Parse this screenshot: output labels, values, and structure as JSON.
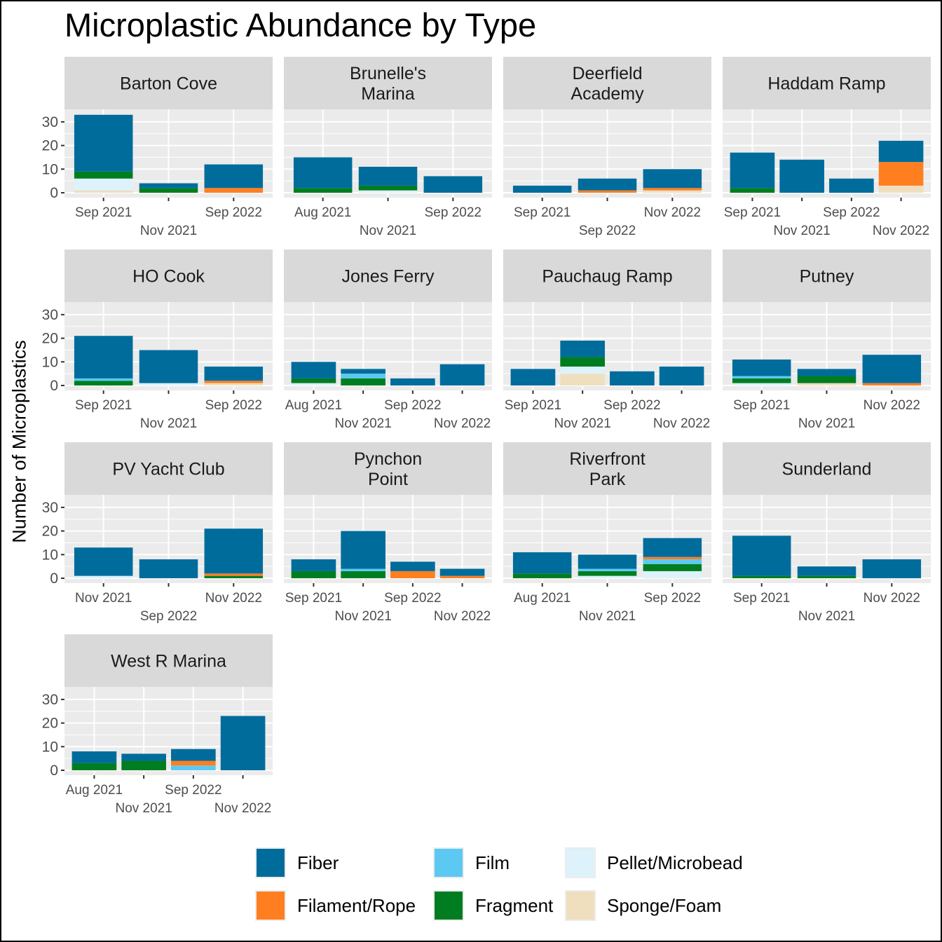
{
  "chart_data": {
    "type": "bar",
    "subtype": "stacked-faceted",
    "title": "Microplastic Abundance by Type",
    "xlabel": "",
    "ylabel": "Number of Microplastics",
    "ylim": [
      0,
      33
    ],
    "yticks": [
      0,
      10,
      20,
      30
    ],
    "grid": true,
    "legend_position": "bottom",
    "types": [
      "Sponge/Foam",
      "Pellet/Microbead",
      "Fragment",
      "Film",
      "Filament/Rope",
      "Fiber"
    ],
    "legend": [
      {
        "name": "Fiber",
        "color": "#006C9C"
      },
      {
        "name": "Film",
        "color": "#5BC9F2"
      },
      {
        "name": "Pellet/Microbead",
        "color": "#DDF2FA"
      },
      {
        "name": "Filament/Rope",
        "color": "#FF7F20"
      },
      {
        "name": "Fragment",
        "color": "#007D20"
      },
      {
        "name": "Sponge/Foam",
        "color": "#EFDFBE"
      }
    ],
    "colors": {
      "Fiber": "#006C9C",
      "Film": "#5BC9F2",
      "Pellet/Microbead": "#DDF2FA",
      "Filament/Rope": "#FF7F20",
      "Fragment": "#007D20",
      "Sponge/Foam": "#EFDFBE"
    },
    "facets": [
      {
        "label": [
          "Barton Cove"
        ],
        "categories": [
          "Sep 2021",
          "Nov 2021",
          "Sep 2022"
        ],
        "series": {
          "Sponge/Foam": [
            1,
            0,
            0
          ],
          "Pellet/Microbead": [
            5,
            0,
            0
          ],
          "Fragment": [
            3,
            2,
            0
          ],
          "Film": [
            0,
            0,
            0
          ],
          "Filament/Rope": [
            0,
            0,
            2
          ],
          "Fiber": [
            24,
            2,
            10
          ]
        }
      },
      {
        "label": [
          "Brunelle's",
          "Marina"
        ],
        "categories": [
          "Aug 2021",
          "Nov 2021",
          "Sep 2022"
        ],
        "series": {
          "Sponge/Foam": [
            0,
            0,
            0
          ],
          "Pellet/Microbead": [
            0,
            1,
            0
          ],
          "Fragment": [
            2,
            2,
            0
          ],
          "Film": [
            0,
            0,
            0
          ],
          "Filament/Rope": [
            0,
            0,
            0
          ],
          "Fiber": [
            13,
            8,
            7
          ]
        }
      },
      {
        "label": [
          "Deerfield",
          "Academy"
        ],
        "categories": [
          "Sep 2021",
          "Sep 2022",
          "Nov 2022"
        ],
        "series": {
          "Sponge/Foam": [
            0,
            0,
            1
          ],
          "Pellet/Microbead": [
            0,
            0,
            0
          ],
          "Fragment": [
            0,
            0,
            0
          ],
          "Film": [
            0,
            0,
            0
          ],
          "Filament/Rope": [
            0,
            1,
            1
          ],
          "Fiber": [
            3,
            5,
            8
          ]
        }
      },
      {
        "label": [
          "Haddam Ramp"
        ],
        "categories": [
          "Sep 2021",
          "Nov 2021",
          "Sep 2022",
          "Nov 2022"
        ],
        "series": {
          "Sponge/Foam": [
            0,
            0,
            0,
            3
          ],
          "Pellet/Microbead": [
            0,
            0,
            0,
            0
          ],
          "Fragment": [
            2,
            0,
            0,
            0
          ],
          "Film": [
            0,
            0,
            0,
            0
          ],
          "Filament/Rope": [
            0,
            0,
            0,
            10
          ],
          "Fiber": [
            15,
            14,
            6,
            9
          ]
        }
      },
      {
        "label": [
          "HO Cook"
        ],
        "categories": [
          "Sep 2021",
          "Nov 2021",
          "Sep 2022"
        ],
        "series": {
          "Sponge/Foam": [
            0,
            0,
            1
          ],
          "Pellet/Microbead": [
            0,
            1,
            0
          ],
          "Fragment": [
            2,
            0,
            0
          ],
          "Film": [
            1,
            0,
            0
          ],
          "Filament/Rope": [
            0,
            0,
            1
          ],
          "Fiber": [
            18,
            14,
            6
          ]
        }
      },
      {
        "label": [
          "Jones Ferry"
        ],
        "categories": [
          "Aug 2021",
          "Nov 2021",
          "Sep 2022",
          "Nov 2022"
        ],
        "series": {
          "Sponge/Foam": [
            0,
            0,
            0,
            0
          ],
          "Pellet/Microbead": [
            1,
            0,
            0,
            0
          ],
          "Fragment": [
            2,
            3,
            0,
            0
          ],
          "Film": [
            0,
            2,
            0,
            0
          ],
          "Filament/Rope": [
            0,
            0,
            0,
            0
          ],
          "Fiber": [
            7,
            2,
            3,
            9
          ]
        }
      },
      {
        "label": [
          "Pauchaug Ramp"
        ],
        "categories": [
          "Sep 2021",
          "Nov 2021",
          "Sep 2022",
          "Nov 2022"
        ],
        "series": {
          "Sponge/Foam": [
            0,
            5,
            0,
            0
          ],
          "Pellet/Microbead": [
            0,
            3,
            0,
            0
          ],
          "Fragment": [
            0,
            4,
            0,
            0
          ],
          "Film": [
            0,
            0,
            0,
            0
          ],
          "Filament/Rope": [
            0,
            0,
            0,
            0
          ],
          "Fiber": [
            7,
            7,
            6,
            8
          ]
        }
      },
      {
        "label": [
          "Putney"
        ],
        "categories": [
          "Sep 2021",
          "Nov 2021",
          "Nov 2022"
        ],
        "series": {
          "Sponge/Foam": [
            0,
            1,
            0
          ],
          "Pellet/Microbead": [
            1,
            0,
            0
          ],
          "Fragment": [
            2,
            3,
            0
          ],
          "Film": [
            1,
            0,
            0
          ],
          "Filament/Rope": [
            0,
            0,
            1
          ],
          "Fiber": [
            7,
            3,
            12
          ]
        }
      },
      {
        "label": [
          "PV Yacht Club"
        ],
        "categories": [
          "Nov 2021",
          "Sep 2022",
          "Nov 2022"
        ],
        "series": {
          "Sponge/Foam": [
            0,
            0,
            0
          ],
          "Pellet/Microbead": [
            1,
            0,
            0
          ],
          "Fragment": [
            0,
            0,
            1
          ],
          "Film": [
            0,
            0,
            0
          ],
          "Filament/Rope": [
            0,
            0,
            1
          ],
          "Fiber": [
            12,
            8,
            19
          ]
        }
      },
      {
        "label": [
          "Pynchon",
          "Point"
        ],
        "categories": [
          "Sep 2021",
          "Nov 2021",
          "Sep 2022",
          "Nov 2022"
        ],
        "series": {
          "Sponge/Foam": [
            0,
            0,
            0,
            0
          ],
          "Pellet/Microbead": [
            0,
            0,
            0,
            0
          ],
          "Fragment": [
            3,
            3,
            0,
            0
          ],
          "Film": [
            0,
            1,
            0,
            0
          ],
          "Filament/Rope": [
            0,
            0,
            3,
            1
          ],
          "Fiber": [
            5,
            16,
            4,
            3
          ]
        }
      },
      {
        "label": [
          "Riverfront",
          "Park"
        ],
        "categories": [
          "Aug 2021",
          "Nov 2021",
          "Sep 2022"
        ],
        "series": {
          "Sponge/Foam": [
            0,
            0,
            0
          ],
          "Pellet/Microbead": [
            0,
            1,
            3
          ],
          "Fragment": [
            2,
            2,
            3
          ],
          "Film": [
            0,
            1,
            2
          ],
          "Filament/Rope": [
            0,
            0,
            1
          ],
          "Fiber": [
            9,
            6,
            8
          ]
        }
      },
      {
        "label": [
          "Sunderland"
        ],
        "categories": [
          "Sep 2021",
          "Nov 2021",
          "Nov 2022"
        ],
        "series": {
          "Sponge/Foam": [
            0,
            0,
            0
          ],
          "Pellet/Microbead": [
            0,
            0,
            0
          ],
          "Fragment": [
            1,
            1,
            0
          ],
          "Film": [
            0,
            0,
            0
          ],
          "Filament/Rope": [
            0,
            0,
            0
          ],
          "Fiber": [
            17,
            4,
            8
          ]
        }
      },
      {
        "label": [
          "West R Marina"
        ],
        "categories": [
          "Aug 2021",
          "Nov 2021",
          "Sep 2022",
          "Nov 2022"
        ],
        "series": {
          "Sponge/Foam": [
            0,
            0,
            0,
            0
          ],
          "Pellet/Microbead": [
            0,
            0,
            0,
            0
          ],
          "Fragment": [
            3,
            4,
            0,
            0
          ],
          "Film": [
            0,
            0,
            2,
            0
          ],
          "Filament/Rope": [
            0,
            0,
            2,
            0
          ],
          "Fiber": [
            5,
            3,
            5,
            23
          ]
        }
      }
    ]
  }
}
